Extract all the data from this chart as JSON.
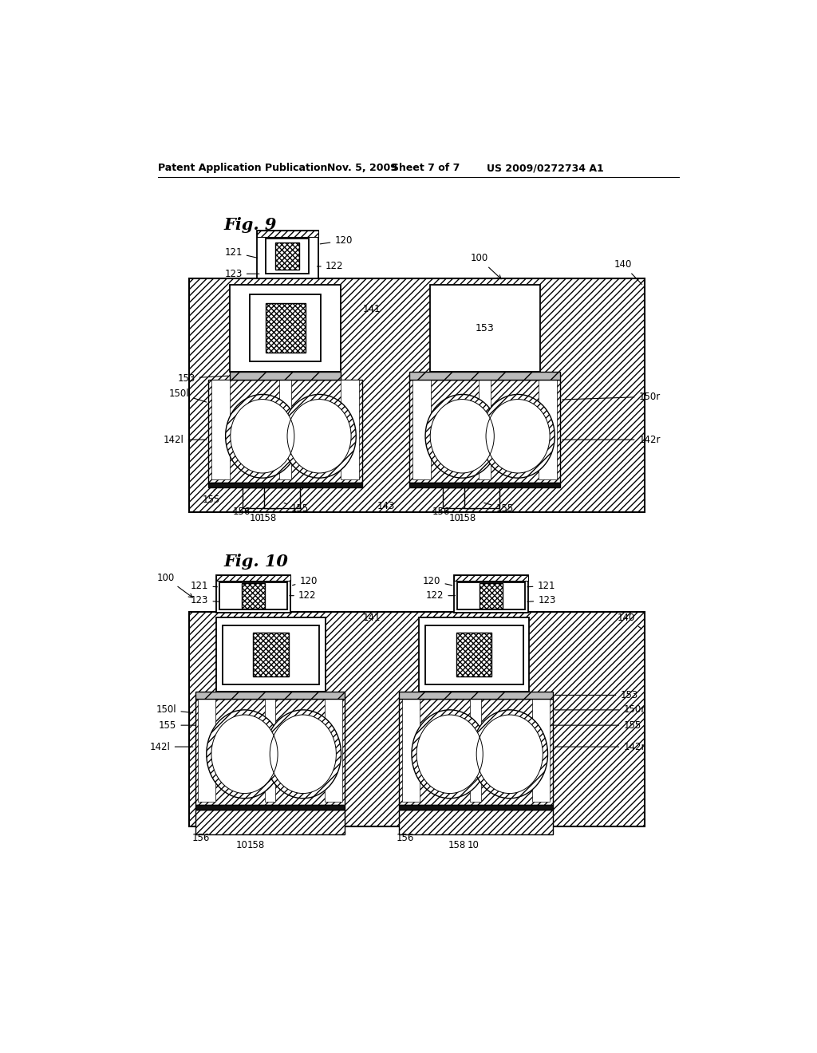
{
  "bg_color": "#ffffff",
  "header_text": "Patent Application Publication",
  "header_date": "Nov. 5, 2009",
  "header_sheet": "Sheet 7 of 7",
  "header_patent": "US 2009/0272734 A1",
  "fig9_title": "Fig. 9",
  "fig10_title": "Fig. 10",
  "line_color": "#000000",
  "label_fontsize": 8.5,
  "title_fontsize": 15
}
